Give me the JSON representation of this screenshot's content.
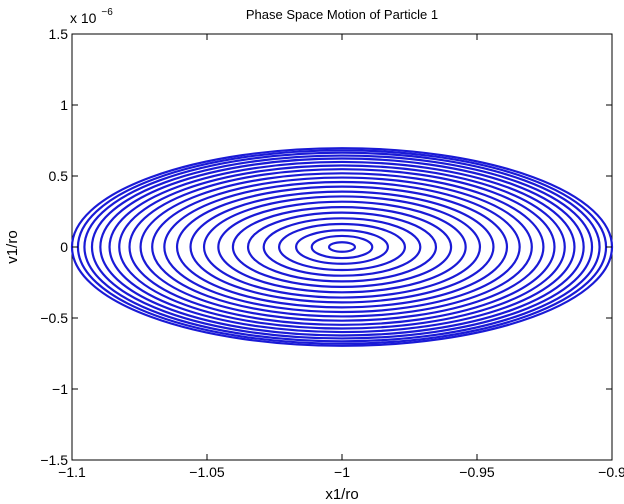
{
  "chart_data": {
    "type": "line",
    "title": "Phase Space Motion of Particle 1",
    "xlabel": "x1/ro",
    "ylabel": "v1/ro",
    "xlim": [
      -1.1,
      -0.9
    ],
    "ylim": [
      -1.5e-06,
      1.5e-06
    ],
    "x_ticks": [
      -1.1,
      -1.05,
      -1.0,
      -0.95,
      -0.9
    ],
    "x_tick_labels": [
      "−1.1",
      "−1.05",
      "−1",
      "−0.95",
      "−0.9"
    ],
    "y_ticks": [
      -1.5,
      -1,
      -0.5,
      0,
      0.5,
      1,
      1.5
    ],
    "y_tick_labels": [
      "−1.5",
      "−1",
      "−0.5",
      "0",
      "0.5",
      "1",
      "1.5"
    ],
    "y_multiplier_base": "x 10",
    "y_multiplier_exp": "−6",
    "grid": false,
    "center": [
      -1.0,
      0.0
    ],
    "series": [
      {
        "color": "#1a1ad6",
        "ellipses": [
          {
            "x_semi": 0.0048,
            "y_semi": 3.35e-08
          },
          {
            "x_semi": 0.0112,
            "y_semi": 7.8e-08
          },
          {
            "x_semi": 0.017,
            "y_semi": 1.18e-07
          },
          {
            "x_semi": 0.0233,
            "y_semi": 1.62e-07
          },
          {
            "x_semi": 0.029,
            "y_semi": 2.02e-07
          },
          {
            "x_semi": 0.0348,
            "y_semi": 2.42e-07
          },
          {
            "x_semi": 0.0404,
            "y_semi": 2.81e-07
          },
          {
            "x_semi": 0.0458,
            "y_semi": 3.19e-07
          },
          {
            "x_semi": 0.0511,
            "y_semi": 3.56e-07
          },
          {
            "x_semi": 0.0561,
            "y_semi": 3.9e-07
          },
          {
            "x_semi": 0.0611,
            "y_semi": 4.25e-07
          },
          {
            "x_semi": 0.0658,
            "y_semi": 4.58e-07
          },
          {
            "x_semi": 0.0703,
            "y_semi": 4.89e-07
          },
          {
            "x_semi": 0.0746,
            "y_semi": 5.19e-07
          },
          {
            "x_semi": 0.0787,
            "y_semi": 5.48e-07
          },
          {
            "x_semi": 0.0825,
            "y_semi": 5.74e-07
          },
          {
            "x_semi": 0.0861,
            "y_semi": 5.99e-07
          },
          {
            "x_semi": 0.0895,
            "y_semi": 6.23e-07
          },
          {
            "x_semi": 0.0926,
            "y_semi": 6.44e-07
          },
          {
            "x_semi": 0.0954,
            "y_semi": 6.64e-07
          },
          {
            "x_semi": 0.0978,
            "y_semi": 6.81e-07
          },
          {
            "x_semi": 0.1,
            "y_semi": 6.96e-07
          }
        ]
      }
    ]
  }
}
